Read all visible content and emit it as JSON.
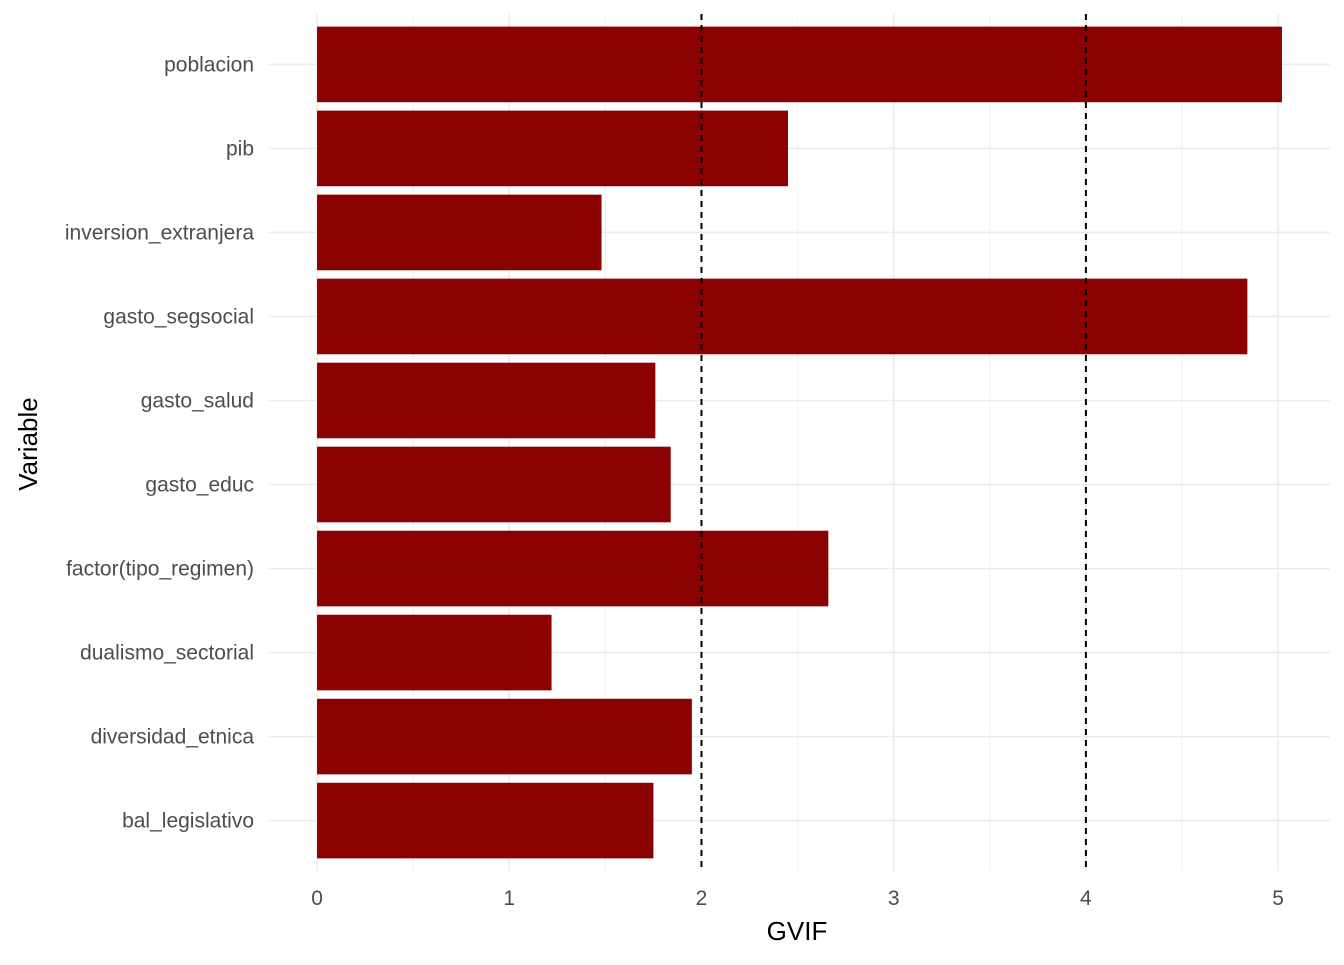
{
  "chart_data": {
    "type": "bar",
    "orientation": "horizontal",
    "xlabel": "GVIF",
    "ylabel": "Variable",
    "categories": [
      "poblacion",
      "pib",
      "inversion_extranjera",
      "gasto_segsocial",
      "gasto_salud",
      "gasto_educ",
      "factor(tipo_regimen)",
      "dualismo_sectorial",
      "diversidad_etnica",
      "bal_legislativo"
    ],
    "values": [
      5.02,
      2.45,
      1.48,
      4.84,
      1.76,
      1.84,
      2.66,
      1.22,
      1.95,
      1.75
    ],
    "xlim": [
      -0.25,
      5.27
    ],
    "xticks": [
      0,
      1,
      2,
      3,
      4,
      5
    ],
    "xtick_labels": [
      "0",
      "1",
      "2",
      "3",
      "4",
      "5"
    ],
    "reference_lines": [
      2,
      4
    ],
    "reference_line_style": "dashed",
    "grid": true,
    "legend": "none",
    "colors": {
      "bar": "#8B0000",
      "grid_major": "#ebebeb",
      "grid_minor": "#f4f4f4",
      "reference_line": "#000000"
    }
  }
}
